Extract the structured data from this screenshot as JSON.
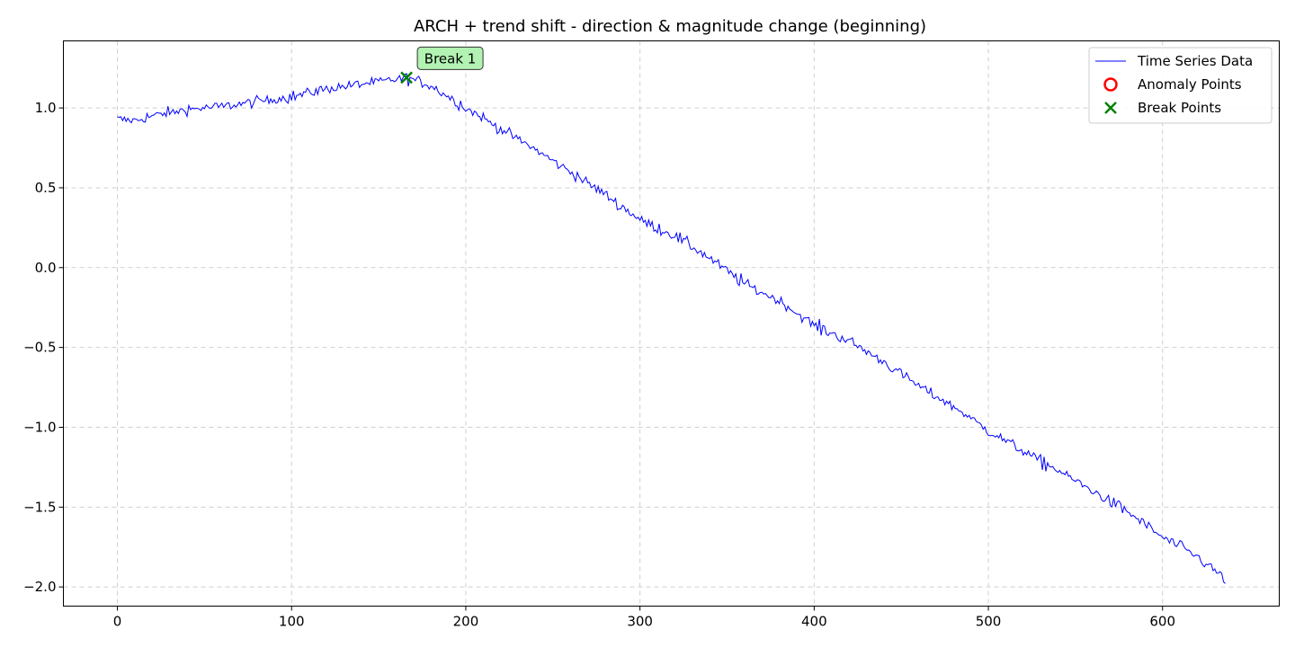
{
  "chart_data": {
    "type": "line",
    "title": "ARCH + trend shift - direction & magnitude change (beginning)",
    "xlabel": "",
    "ylabel": "",
    "xlim": [
      -31,
      667
    ],
    "ylim": [
      -2.12,
      1.42
    ],
    "xticks": [
      0,
      100,
      200,
      300,
      400,
      500,
      600
    ],
    "yticks": [
      1.0,
      0.5,
      0.0,
      -0.5,
      -1.0,
      -1.5,
      -2.0
    ],
    "ytick_labels": [
      "1.0",
      "0.5",
      "0.0",
      "−0.5",
      "−1.0",
      "−1.5",
      "−2.0"
    ],
    "grid": true,
    "legend_position": "top-right",
    "series": [
      {
        "name": "Time Series Data",
        "color": "#0000ff",
        "anchors": [
          [
            0,
            0.93
          ],
          [
            10,
            0.92
          ],
          [
            20,
            0.95
          ],
          [
            40,
            0.99
          ],
          [
            60,
            1.01
          ],
          [
            80,
            1.04
          ],
          [
            100,
            1.07
          ],
          [
            120,
            1.12
          ],
          [
            140,
            1.15
          ],
          [
            155,
            1.17
          ],
          [
            166,
            1.19
          ],
          [
            180,
            1.14
          ],
          [
            200,
            1.0
          ],
          [
            220,
            0.87
          ],
          [
            240,
            0.74
          ],
          [
            260,
            0.6
          ],
          [
            280,
            0.46
          ],
          [
            300,
            0.3
          ],
          [
            320,
            0.2
          ],
          [
            340,
            0.06
          ],
          [
            360,
            -0.1
          ],
          [
            380,
            -0.21
          ],
          [
            400,
            -0.36
          ],
          [
            420,
            -0.46
          ],
          [
            440,
            -0.59
          ],
          [
            460,
            -0.74
          ],
          [
            480,
            -0.87
          ],
          [
            500,
            -1.02
          ],
          [
            520,
            -1.15
          ],
          [
            540,
            -1.27
          ],
          [
            560,
            -1.4
          ],
          [
            580,
            -1.53
          ],
          [
            600,
            -1.69
          ],
          [
            620,
            -1.81
          ],
          [
            636,
            -1.95
          ]
        ],
        "n_points": 637
      }
    ],
    "anomaly_points": [],
    "break_points": [
      {
        "x": 166,
        "y": 1.19,
        "label": "Break 1"
      }
    ],
    "legend": [
      {
        "name": "Time Series Data",
        "marker": "line",
        "color": "#0000ff"
      },
      {
        "name": "Anomaly Points",
        "marker": "circle",
        "color": "#ff0000"
      },
      {
        "name": "Break Points",
        "marker": "x",
        "color": "#008000"
      }
    ],
    "annotation_color": "#b2f2b2"
  }
}
